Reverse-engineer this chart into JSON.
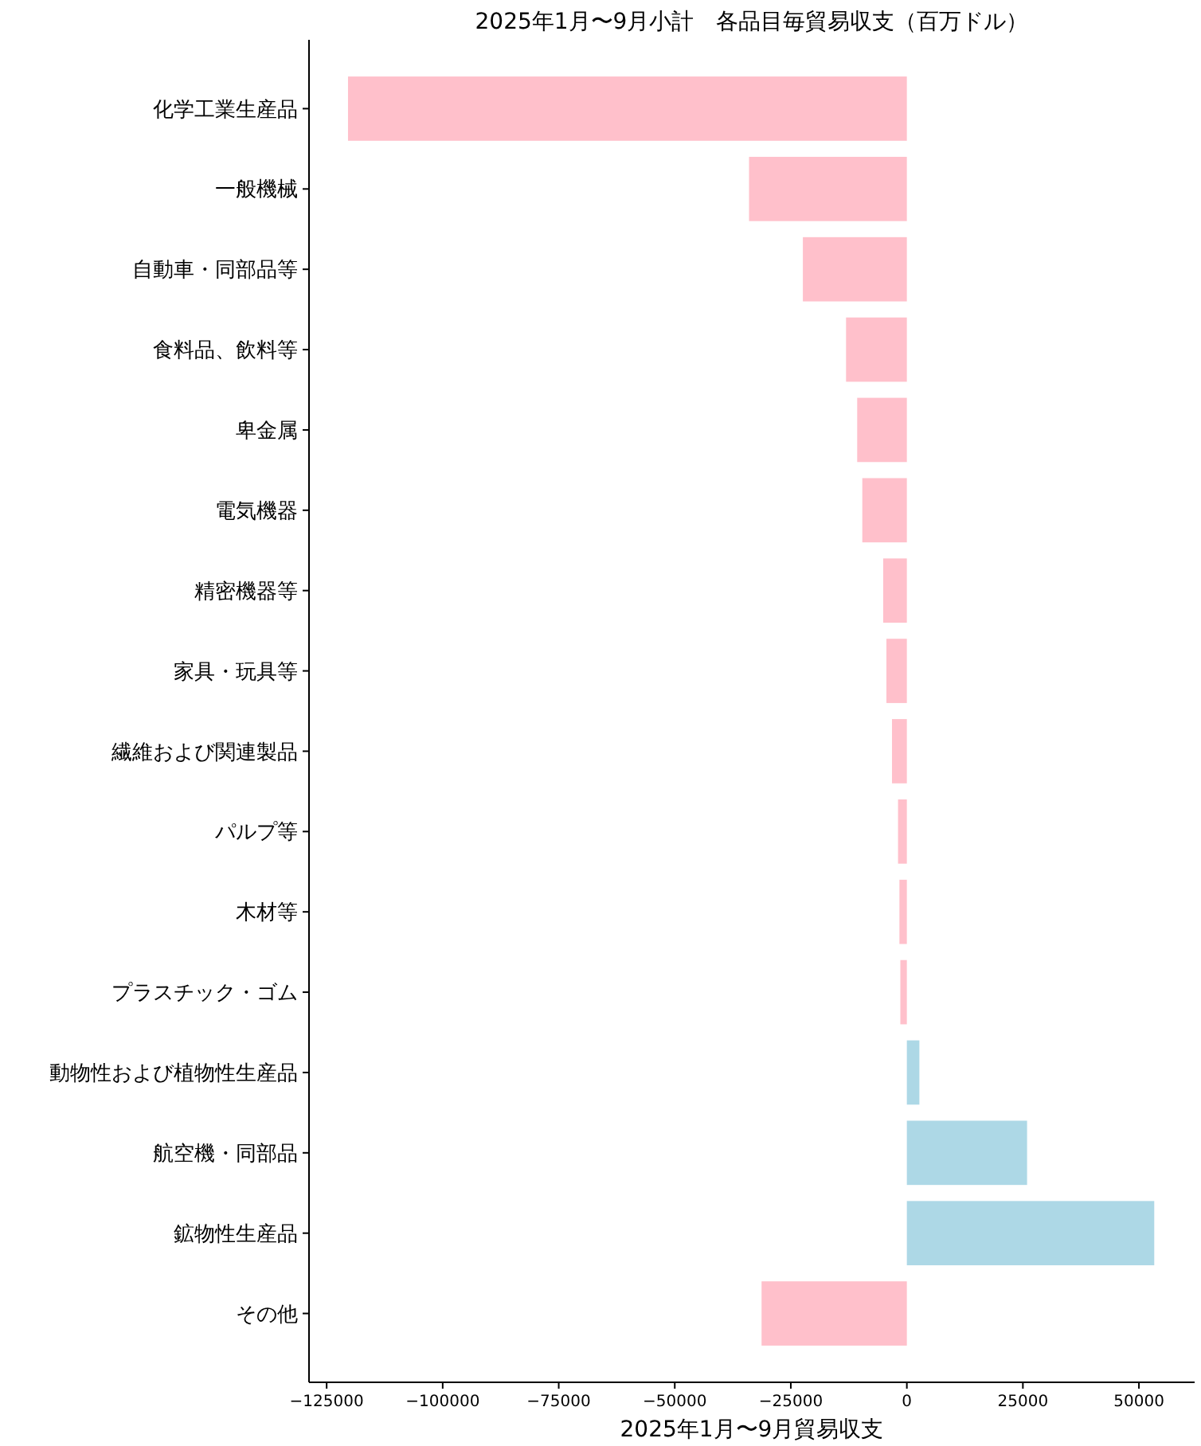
{
  "chart_data": {
    "type": "bar",
    "orientation": "horizontal",
    "title": "2025年1月〜9月小計　各品目毎貿易収支（百万ドル）",
    "xlabel": "2025年1月〜9月貿易収支",
    "categories": [
      "化学工業生産品",
      "一般機械",
      "自動車・同部品等",
      "食料品、飲料等",
      "卑金属",
      "電気機器",
      "精密機器等",
      "家具・玩具等",
      "繊維および関連製品",
      "パルプ等",
      "木材等",
      "プラスチック・ゴム",
      "動物性および植物性生産品",
      "航空機・同部品",
      "鉱物性生産品",
      "その他"
    ],
    "values": [
      -120400,
      -34000,
      -22400,
      -13100,
      -10700,
      -9600,
      -5100,
      -4400,
      -3200,
      -1900,
      -1600,
      -1400,
      2700,
      25900,
      53300,
      -31300
    ],
    "colors": [
      "#ffc0cb",
      "#ffc0cb",
      "#ffc0cb",
      "#ffc0cb",
      "#ffc0cb",
      "#ffc0cb",
      "#ffc0cb",
      "#ffc0cb",
      "#ffc0cb",
      "#ffc0cb",
      "#ffc0cb",
      "#ffc0cb",
      "#add8e6",
      "#add8e6",
      "#add8e6",
      "#ffc0cb"
    ],
    "xlim": [
      -128800,
      62000
    ],
    "xticks": [
      -125000,
      -100000,
      -75000,
      -50000,
      -25000,
      0,
      25000,
      50000
    ],
    "grid": false
  }
}
